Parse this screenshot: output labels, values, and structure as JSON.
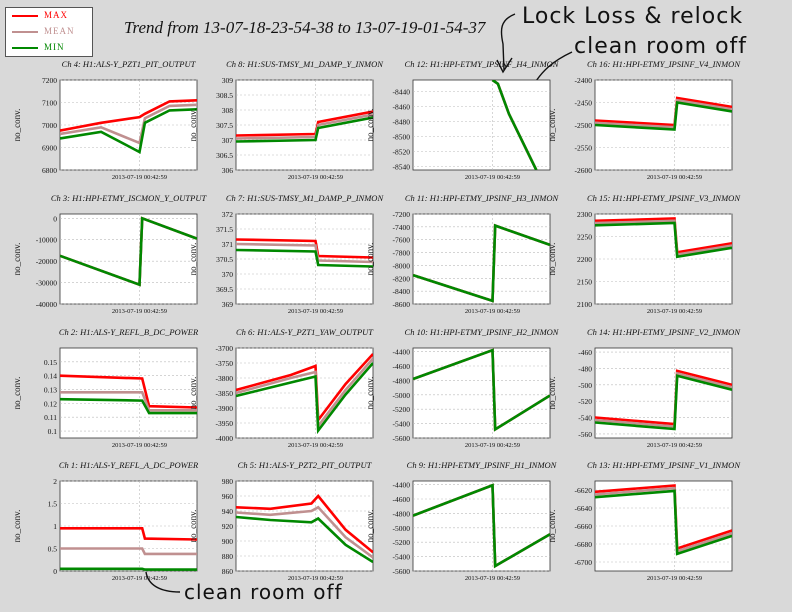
{
  "title": "Trend from 13-07-18-23-54-38 to 13-07-19-01-54-37",
  "legend": [
    {
      "label": "MAX",
      "color": "#ff0000"
    },
    {
      "label": "MEAN",
      "color": "#c09090"
    },
    {
      "label": "MIN",
      "color": "#008800"
    }
  ],
  "annotations": {
    "top_line1": "Lock Loss & relock",
    "top_line2": "clean room off",
    "bottom": "clean room off"
  },
  "chart_data": [
    {
      "type": "line",
      "channel": "Ch 4: H1:ALS-Y_PZT1_PIT_OUTPUT",
      "ylabel": "no_conv.",
      "yticks": [
        6800,
        6900,
        7000,
        7100,
        7200
      ],
      "ylim": [
        6800,
        7200
      ],
      "xtick": "2013-07-19 00:42:59",
      "series": [
        {
          "name": "MAX",
          "x": [
            0,
            0.3,
            0.58,
            0.62,
            0.8,
            1
          ],
          "y": [
            6975,
            7010,
            7035,
            7050,
            7105,
            7110
          ]
        },
        {
          "name": "MEAN",
          "x": [
            0,
            0.3,
            0.58,
            0.62,
            0.8,
            1
          ],
          "y": [
            6960,
            6990,
            6920,
            7030,
            7085,
            7090
          ]
        },
        {
          "name": "MIN",
          "x": [
            0,
            0.3,
            0.58,
            0.62,
            0.8,
            1
          ],
          "y": [
            6940,
            6970,
            6880,
            7010,
            7065,
            7070
          ]
        }
      ]
    },
    {
      "type": "line",
      "channel": "Ch 8: H1:SUS-TMSY_M1_DAMP_Y_INMON",
      "ylabel": "no_conv.",
      "yticks": [
        306,
        306.5,
        307,
        307.5,
        308,
        308.5,
        309
      ],
      "ylim": [
        306,
        309
      ],
      "xtick": "2013-07-19 00:42:59",
      "series": [
        {
          "name": "MAX",
          "x": [
            0,
            0.58,
            0.6,
            1
          ],
          "y": [
            307.15,
            307.2,
            307.6,
            307.95
          ]
        },
        {
          "name": "MEAN",
          "x": [
            0,
            0.58,
            0.6,
            1
          ],
          "y": [
            307.05,
            307.1,
            307.5,
            307.85
          ]
        },
        {
          "name": "MIN",
          "x": [
            0,
            0.58,
            0.6,
            1
          ],
          "y": [
            306.95,
            307.0,
            307.4,
            307.75
          ]
        }
      ]
    },
    {
      "type": "line",
      "channel": "Ch 12: H1:HPI-ETMY_IPSINF_H4_INMON",
      "ylabel": "no_conv.",
      "yticks": [
        -8540,
        -8520,
        -8500,
        -8480,
        -8460,
        -8440
      ],
      "ylim": [
        -8545,
        -8425
      ],
      "xtick": "2013-07-19 00:42:59",
      "series": [
        {
          "name": "MAX",
          "x": [
            0.58,
            0.62,
            0.7,
            0.9
          ],
          "y": [
            -8425,
            -8430,
            -8470,
            -8545
          ]
        },
        {
          "name": "MEAN",
          "x": [
            0.58,
            0.62,
            0.7,
            0.9
          ],
          "y": [
            -8425,
            -8430,
            -8470,
            -8545
          ]
        },
        {
          "name": "MIN",
          "x": [
            0.58,
            0.62,
            0.7,
            0.9
          ],
          "y": [
            -8425,
            -8430,
            -8470,
            -8545
          ]
        }
      ]
    },
    {
      "type": "line",
      "channel": "Ch 16: H1:HPI-ETMY_IPSINF_V4_INMON",
      "ylabel": "no_conv.",
      "yticks": [
        -2600,
        -2550,
        -2500,
        -2450,
        -2400
      ],
      "ylim": [
        -2600,
        -2400
      ],
      "xtick": "2013-07-19 00:42:59",
      "series": [
        {
          "name": "MAX",
          "x": [
            0,
            0.58,
            0.6,
            1
          ],
          "y": [
            -2490,
            -2500,
            -2440,
            -2460
          ]
        },
        {
          "name": "MEAN",
          "x": [
            0,
            0.58,
            0.6,
            1
          ],
          "y": [
            -2495,
            -2505,
            -2445,
            -2465
          ]
        },
        {
          "name": "MIN",
          "x": [
            0,
            0.58,
            0.6,
            1
          ],
          "y": [
            -2500,
            -2510,
            -2450,
            -2470
          ]
        }
      ]
    },
    {
      "type": "line",
      "channel": "Ch 3: H1:HPI-ETMY_ISCMON_Y_OUTPUT",
      "ylabel": "no_conv.",
      "yticks": [
        -40000,
        -30000,
        -20000,
        -10000,
        0
      ],
      "ylim": [
        -40000,
        2000
      ],
      "xtick": "2013-07-19 00:42:59",
      "series": [
        {
          "name": "MAX",
          "x": [
            0,
            0.58,
            0.6,
            1
          ],
          "y": [
            -17500,
            -31000,
            0,
            -9500
          ]
        },
        {
          "name": "MEAN",
          "x": [
            0,
            0.58,
            0.6,
            1
          ],
          "y": [
            -17500,
            -31000,
            0,
            -9500
          ]
        },
        {
          "name": "MIN",
          "x": [
            0,
            0.58,
            0.6,
            1
          ],
          "y": [
            -17500,
            -31000,
            0,
            -9500
          ]
        }
      ]
    },
    {
      "type": "line",
      "channel": "Ch 7: H1:SUS-TMSY_M1_DAMP_P_INMON",
      "ylabel": "no_conv.",
      "yticks": [
        369,
        369.5,
        370,
        370.5,
        371,
        371.5,
        372
      ],
      "ylim": [
        369,
        372
      ],
      "xtick": "2013-07-19 00:42:59",
      "series": [
        {
          "name": "MAX",
          "x": [
            0,
            0.58,
            0.6,
            1
          ],
          "y": [
            371.15,
            371.1,
            370.6,
            370.55
          ]
        },
        {
          "name": "MEAN",
          "x": [
            0,
            0.58,
            0.6,
            1
          ],
          "y": [
            371.0,
            370.95,
            370.45,
            370.4
          ]
        },
        {
          "name": "MIN",
          "x": [
            0,
            0.58,
            0.6,
            1
          ],
          "y": [
            370.8,
            370.75,
            370.3,
            370.25
          ]
        }
      ]
    },
    {
      "type": "line",
      "channel": "Ch 11: H1:HPI-ETMY_IPSINF_H3_INMON",
      "ylabel": "no_conv.",
      "yticks": [
        -8600,
        -8400,
        -8200,
        -8000,
        -7800,
        -7600,
        -7400,
        -7200
      ],
      "ylim": [
        -8600,
        -7200
      ],
      "xtick": "2013-07-19 00:42:59",
      "series": [
        {
          "name": "MAX",
          "x": [
            0,
            0.58,
            0.6,
            1
          ],
          "y": [
            -8150,
            -8550,
            -7380,
            -7680
          ]
        },
        {
          "name": "MEAN",
          "x": [
            0,
            0.58,
            0.6,
            1
          ],
          "y": [
            -8150,
            -8550,
            -7380,
            -7680
          ]
        },
        {
          "name": "MIN",
          "x": [
            0,
            0.58,
            0.6,
            1
          ],
          "y": [
            -8150,
            -8550,
            -7380,
            -7680
          ]
        }
      ]
    },
    {
      "type": "line",
      "channel": "Ch 15: H1:HPI-ETMY_IPSINF_V3_INMON",
      "ylabel": "no_conv.",
      "yticks": [
        2100,
        2150,
        2200,
        2250,
        2300
      ],
      "ylim": [
        2100,
        2300
      ],
      "xtick": "2013-07-19 00:42:59",
      "series": [
        {
          "name": "MAX",
          "x": [
            0,
            0.58,
            0.6,
            1
          ],
          "y": [
            2285,
            2290,
            2215,
            2235
          ]
        },
        {
          "name": "MEAN",
          "x": [
            0,
            0.58,
            0.6,
            1
          ],
          "y": [
            2280,
            2285,
            2210,
            2230
          ]
        },
        {
          "name": "MIN",
          "x": [
            0,
            0.58,
            0.6,
            1
          ],
          "y": [
            2275,
            2280,
            2205,
            2225
          ]
        }
      ]
    },
    {
      "type": "line",
      "channel": "Ch 2: H1:ALS-Y_REFL_B_DC_POWER",
      "ylabel": "no_conv.",
      "yticks": [
        0.1,
        0.11,
        0.12,
        0.13,
        0.14,
        0.15
      ],
      "ylim": [
        0.095,
        0.16
      ],
      "xtick": "2013-07-19 00:42:59",
      "series": [
        {
          "name": "MAX",
          "x": [
            0,
            0.6,
            0.65,
            1
          ],
          "y": [
            0.14,
            0.138,
            0.118,
            0.117
          ]
        },
        {
          "name": "MEAN",
          "x": [
            0,
            0.6,
            0.65,
            1
          ],
          "y": [
            0.128,
            0.128,
            0.115,
            0.115
          ]
        },
        {
          "name": "MIN",
          "x": [
            0,
            0.6,
            0.65,
            1
          ],
          "y": [
            0.123,
            0.122,
            0.113,
            0.113
          ]
        }
      ]
    },
    {
      "type": "line",
      "channel": "Ch 6: H1:ALS-Y_PZT1_YAW_OUTPUT",
      "ylabel": "no_conv.",
      "yticks": [
        -4000,
        -3950,
        -3900,
        -3850,
        -3800,
        -3750,
        -3700
      ],
      "ylim": [
        -4000,
        -3700
      ],
      "xtick": "2013-07-19 00:42:59",
      "series": [
        {
          "name": "MAX",
          "x": [
            0,
            0.4,
            0.58,
            0.6,
            0.8,
            1
          ],
          "y": [
            -3840,
            -3790,
            -3760,
            -3940,
            -3820,
            -3720
          ]
        },
        {
          "name": "MEAN",
          "x": [
            0,
            0.4,
            0.58,
            0.6,
            0.8,
            1
          ],
          "y": [
            -3850,
            -3800,
            -3780,
            -3960,
            -3840,
            -3735
          ]
        },
        {
          "name": "MIN",
          "x": [
            0,
            0.4,
            0.58,
            0.6,
            0.8,
            1
          ],
          "y": [
            -3860,
            -3815,
            -3795,
            -3975,
            -3855,
            -3750
          ]
        }
      ]
    },
    {
      "type": "line",
      "channel": "Ch 10: H1:HPI-ETMY_IPSINF_H2_INMON",
      "ylabel": "no_conv.",
      "yticks": [
        -5600,
        -5400,
        -5200,
        -5000,
        -4800,
        -4600,
        -4400
      ],
      "ylim": [
        -5600,
        -4350
      ],
      "xtick": "2013-07-19 00:42:59",
      "series": [
        {
          "name": "MAX",
          "x": [
            0,
            0.58,
            0.6,
            1
          ],
          "y": [
            -4780,
            -4380,
            -5480,
            -5010
          ]
        },
        {
          "name": "MEAN",
          "x": [
            0,
            0.58,
            0.6,
            1
          ],
          "y": [
            -4780,
            -4380,
            -5480,
            -5010
          ]
        },
        {
          "name": "MIN",
          "x": [
            0,
            0.58,
            0.6,
            1
          ],
          "y": [
            -4780,
            -4380,
            -5480,
            -5010
          ]
        }
      ]
    },
    {
      "type": "line",
      "channel": "Ch 14: H1:HPI-ETMY_IPSINF_V2_INMON",
      "ylabel": "no_conv.",
      "yticks": [
        -560,
        -540,
        -520,
        -500,
        -480,
        -460
      ],
      "ylim": [
        -565,
        -455
      ],
      "xtick": "2013-07-19 00:42:59",
      "series": [
        {
          "name": "MAX",
          "x": [
            0,
            0.58,
            0.6,
            1
          ],
          "y": [
            -540,
            -548,
            -483,
            -500
          ]
        },
        {
          "name": "MEAN",
          "x": [
            0,
            0.58,
            0.6,
            1
          ],
          "y": [
            -543,
            -551,
            -486,
            -503
          ]
        },
        {
          "name": "MIN",
          "x": [
            0,
            0.58,
            0.6,
            1
          ],
          "y": [
            -546,
            -554,
            -489,
            -506
          ]
        }
      ]
    },
    {
      "type": "line",
      "channel": "Ch 1: H1:ALS-Y_REFL_A_DC_POWER",
      "ylabel": "no_conv.",
      "yticks": [
        0,
        0.5,
        1,
        1.5,
        2
      ],
      "ylim": [
        0,
        2
      ],
      "xtick": "2013-07-19 00:42:59",
      "series": [
        {
          "name": "MAX",
          "x": [
            0,
            0.6,
            0.62,
            1
          ],
          "y": [
            0.95,
            0.95,
            0.72,
            0.7
          ]
        },
        {
          "name": "MEAN",
          "x": [
            0,
            0.6,
            0.62,
            1
          ],
          "y": [
            0.5,
            0.5,
            0.38,
            0.38
          ]
        },
        {
          "name": "MIN",
          "x": [
            0,
            0.6,
            0.62,
            1
          ],
          "y": [
            0.05,
            0.05,
            0.03,
            0.03
          ]
        }
      ]
    },
    {
      "type": "line",
      "channel": "Ch 5: H1:ALS-Y_PZT2_PIT_OUTPUT",
      "ylabel": "no_conv.",
      "yticks": [
        860,
        880,
        900,
        920,
        940,
        960,
        980
      ],
      "ylim": [
        860,
        980
      ],
      "xtick": "2013-07-19 00:42:59",
      "series": [
        {
          "name": "MAX",
          "x": [
            0,
            0.25,
            0.55,
            0.6,
            0.8,
            1
          ],
          "y": [
            945,
            943,
            950,
            960,
            915,
            885
          ]
        },
        {
          "name": "MEAN",
          "x": [
            0,
            0.25,
            0.55,
            0.6,
            0.8,
            1
          ],
          "y": [
            938,
            935,
            940,
            945,
            905,
            878
          ]
        },
        {
          "name": "MIN",
          "x": [
            0,
            0.25,
            0.55,
            0.6,
            0.8,
            1
          ],
          "y": [
            932,
            928,
            925,
            930,
            895,
            872
          ]
        }
      ]
    },
    {
      "type": "line",
      "channel": "Ch 9: H1:HPI-ETMY_IPSINF_H1_INMON",
      "ylabel": "no_conv.",
      "yticks": [
        -5600,
        -5400,
        -5200,
        -5000,
        -4800,
        -4600,
        -4400
      ],
      "ylim": [
        -5600,
        -4350
      ],
      "xtick": "2013-07-19 00:42:59",
      "series": [
        {
          "name": "MAX",
          "x": [
            0,
            0.58,
            0.6,
            1
          ],
          "y": [
            -4830,
            -4410,
            -5530,
            -5090
          ]
        },
        {
          "name": "MEAN",
          "x": [
            0,
            0.58,
            0.6,
            1
          ],
          "y": [
            -4830,
            -4410,
            -5530,
            -5090
          ]
        },
        {
          "name": "MIN",
          "x": [
            0,
            0.58,
            0.6,
            1
          ],
          "y": [
            -4830,
            -4410,
            -5530,
            -5090
          ]
        }
      ]
    },
    {
      "type": "line",
      "channel": "Ch 13: H1:HPI-ETMY_IPSINF_V1_INMON",
      "ylabel": "no_conv.",
      "yticks": [
        -6700,
        -6680,
        -6660,
        -6640,
        -6620
      ],
      "ylim": [
        -6710,
        -6610
      ],
      "xtick": "2013-07-19 00:42:59",
      "series": [
        {
          "name": "MAX",
          "x": [
            0,
            0.58,
            0.6,
            1
          ],
          "y": [
            -6622,
            -6615,
            -6685,
            -6665
          ]
        },
        {
          "name": "MEAN",
          "x": [
            0,
            0.58,
            0.6,
            1
          ],
          "y": [
            -6625,
            -6618,
            -6688,
            -6668
          ]
        },
        {
          "name": "MIN",
          "x": [
            0,
            0.58,
            0.6,
            1
          ],
          "y": [
            -6628,
            -6621,
            -6691,
            -6671
          ]
        }
      ]
    }
  ]
}
